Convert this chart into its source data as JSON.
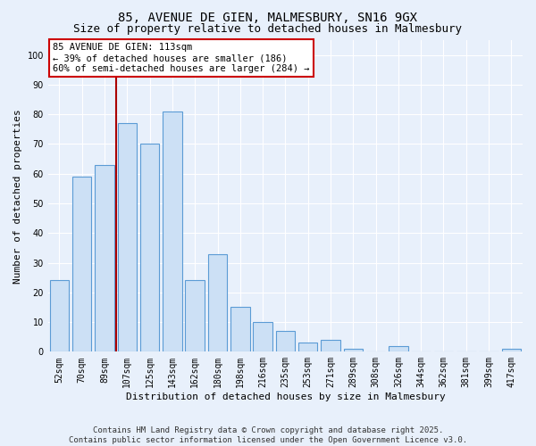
{
  "title1": "85, AVENUE DE GIEN, MALMESBURY, SN16 9GX",
  "title2": "Size of property relative to detached houses in Malmesbury",
  "xlabel": "Distribution of detached houses by size in Malmesbury",
  "ylabel": "Number of detached properties",
  "categories": [
    "52sqm",
    "70sqm",
    "89sqm",
    "107sqm",
    "125sqm",
    "143sqm",
    "162sqm",
    "180sqm",
    "198sqm",
    "216sqm",
    "235sqm",
    "253sqm",
    "271sqm",
    "289sqm",
    "308sqm",
    "326sqm",
    "344sqm",
    "362sqm",
    "381sqm",
    "399sqm",
    "417sqm"
  ],
  "values": [
    24,
    59,
    63,
    77,
    70,
    81,
    24,
    33,
    15,
    10,
    7,
    3,
    4,
    1,
    0,
    2,
    0,
    0,
    0,
    0,
    1
  ],
  "bar_color": "#cce0f5",
  "bar_edge_color": "#5b9bd5",
  "vline_x": 2.5,
  "vline_color": "#aa0000",
  "annotation_text": "85 AVENUE DE GIEN: 113sqm\n← 39% of detached houses are smaller (186)\n60% of semi-detached houses are larger (284) →",
  "annotation_box_color": "#ffffff",
  "annotation_box_edge": "#cc0000",
  "ylim": [
    0,
    105
  ],
  "yticks": [
    0,
    10,
    20,
    30,
    40,
    50,
    60,
    70,
    80,
    90,
    100
  ],
  "footer1": "Contains HM Land Registry data © Crown copyright and database right 2025.",
  "footer2": "Contains public sector information licensed under the Open Government Licence v3.0.",
  "bg_color": "#e8f0fb",
  "plot_bg_color": "#e8f0fb",
  "title_fontsize": 10,
  "subtitle_fontsize": 9,
  "tick_fontsize": 7,
  "label_fontsize": 8,
  "footer_fontsize": 6.5,
  "annotation_fontsize": 7.5
}
